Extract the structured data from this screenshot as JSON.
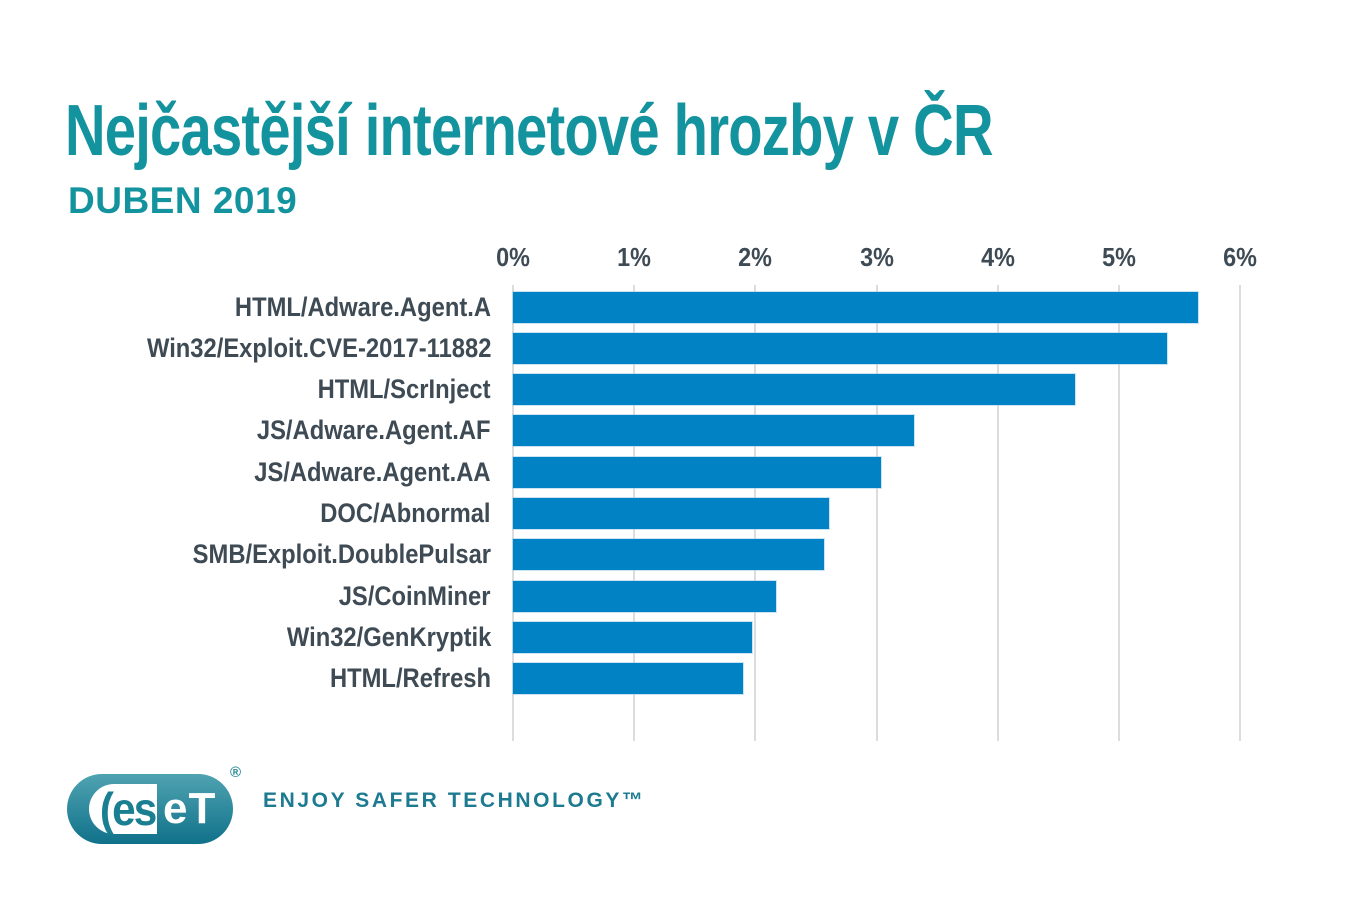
{
  "header": {
    "title": "Nejčastější internetové hrozby v ČR",
    "subtitle": "DUBEN 2019"
  },
  "chart_data": {
    "type": "bar",
    "orientation": "horizontal",
    "title": "Nejčastější internetové hrozby v ČR",
    "subtitle": "DUBEN 2019",
    "categories": [
      "HTML/Adware.Agent.A",
      "Win32/Exploit.CVE-2017-11882",
      "HTML/ScrInject",
      "JS/Adware.Agent.AF",
      "JS/Adware.Agent.AA",
      "DOC/Abnormal",
      "SMB/Exploit.DoublePulsar",
      "JS/CoinMiner",
      "Win32/GenKryptik",
      "HTML/Refresh"
    ],
    "values": [
      5.65,
      5.4,
      4.64,
      3.31,
      3.04,
      2.61,
      2.57,
      2.17,
      1.97,
      1.9
    ],
    "unit": "%",
    "xlabel": "",
    "ylabel": "",
    "x_ticks": [
      "0%",
      "1%",
      "2%",
      "3%",
      "4%",
      "5%",
      "6%"
    ],
    "xlim": [
      0,
      6
    ],
    "grid": true,
    "legend": false,
    "axis_position": "top",
    "bar_color": "#0082c4"
  },
  "footer": {
    "logo": {
      "left_text": "(es",
      "right_text": "eT",
      "registered": "®"
    },
    "tagline": "ENJOY SAFER TECHNOLOGY™"
  },
  "colors": {
    "accent_teal": "#13939e",
    "bar_blue": "#0082c4",
    "label_slate": "#3e4a54",
    "grid_gray": "#dcdcdc",
    "logo_teal_top": "#4fa3b1",
    "logo_teal_bottom": "#10718a",
    "tagline_teal": "#1d7b91"
  }
}
